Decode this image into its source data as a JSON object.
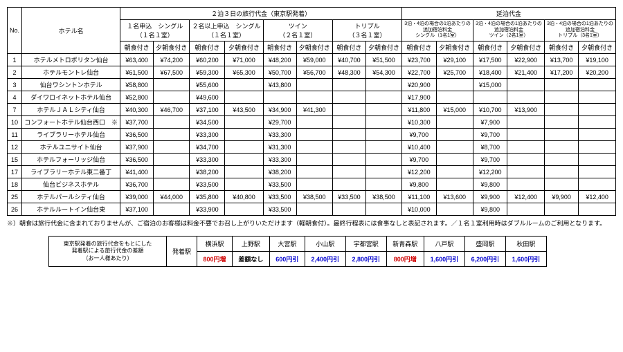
{
  "main": {
    "headers": {
      "no": "No.",
      "hotel": "ホテル名",
      "trip_title": "２泊３日の旅行代金（東京駅発着）",
      "ext_title": "延泊代金",
      "groups": [
        {
          "top": "１名申込　シングル",
          "bottom": "（１名１室）"
        },
        {
          "top": "２名以上申込　シングル",
          "bottom": "（１名１室）"
        },
        {
          "top": "ツイン",
          "bottom": "（２名１室）"
        },
        {
          "top": "トリプル",
          "bottom": "（３名１室）"
        }
      ],
      "ext_groups": [
        {
          "l1": "3泊・4泊の場合の1泊あたりの",
          "l2": "追加宿泊料金",
          "l3": "シングル（1名1室）"
        },
        {
          "l1": "3泊・4泊の場合の1泊あたりの",
          "l2": "追加宿泊料金",
          "l3": "ツイン（2名1室）"
        },
        {
          "l1": "3泊・4泊の場合の1泊あたりの",
          "l2": "追加宿泊料金",
          "l3": "トリプル（3名1室）"
        }
      ],
      "sub_bf": "朝食付き",
      "sub_db": "夕朝食付き"
    },
    "rows": [
      {
        "no": "1",
        "hotel": "ホテルメトロポリタン仙台",
        "v": [
          "¥63,400",
          "¥74,200",
          "¥60,200",
          "¥71,000",
          "¥48,200",
          "¥59,000",
          "¥40,700",
          "¥51,500",
          "¥23,700",
          "¥29,100",
          "¥17,500",
          "¥22,900",
          "¥13,700",
          "¥19,100"
        ]
      },
      {
        "no": "2",
        "hotel": "ホテルモントレ仙台",
        "v": [
          "¥61,500",
          "¥67,500",
          "¥59,300",
          "¥65,300",
          "¥50,700",
          "¥56,700",
          "¥48,300",
          "¥54,300",
          "¥22,700",
          "¥25,700",
          "¥18,400",
          "¥21,400",
          "¥17,200",
          "¥20,200"
        ]
      },
      {
        "no": "3",
        "hotel": "仙台ワシントンホテル",
        "v": [
          "¥58,800",
          "",
          "¥55,600",
          "",
          "¥43,800",
          "",
          "",
          "",
          "¥20,900",
          "",
          "¥15,000",
          "",
          "",
          ""
        ]
      },
      {
        "no": "4",
        "hotel": "ダイワロイネットホテル仙台",
        "v": [
          "¥52,800",
          "",
          "¥49,600",
          "",
          "",
          "",
          "",
          "",
          "¥17,900",
          "",
          "",
          "",
          "",
          ""
        ]
      },
      {
        "no": "7",
        "hotel": "ホテルＪＡＬシティ仙台",
        "v": [
          "¥40,300",
          "¥46,700",
          "¥37,100",
          "¥43,500",
          "¥34,900",
          "¥41,300",
          "",
          "",
          "¥11,800",
          "¥15,000",
          "¥10,700",
          "¥13,900",
          "",
          ""
        ]
      },
      {
        "no": "10",
        "hotel": "コンフォートホテル仙台西口　※",
        "v": [
          "¥37,700",
          "",
          "¥34,500",
          "",
          "¥29,700",
          "",
          "",
          "",
          "¥10,300",
          "",
          "¥7,900",
          "",
          "",
          ""
        ]
      },
      {
        "no": "11",
        "hotel": "ライブラリーホテル仙台",
        "v": [
          "¥36,500",
          "",
          "¥33,300",
          "",
          "¥33,300",
          "",
          "",
          "",
          "¥9,700",
          "",
          "¥9,700",
          "",
          "",
          ""
        ]
      },
      {
        "no": "12",
        "hotel": "ホテルユニサイト仙台",
        "v": [
          "¥37,900",
          "",
          "¥34,700",
          "",
          "¥31,300",
          "",
          "",
          "",
          "¥10,400",
          "",
          "¥8,700",
          "",
          "",
          ""
        ]
      },
      {
        "no": "15",
        "hotel": "ホテルフォーリッジ仙台",
        "v": [
          "¥36,500",
          "",
          "¥33,300",
          "",
          "¥33,300",
          "",
          "",
          "",
          "¥9,700",
          "",
          "¥9,700",
          "",
          "",
          ""
        ]
      },
      {
        "no": "17",
        "hotel": "ライブラリーホテル東二番丁",
        "v": [
          "¥41,400",
          "",
          "¥38,200",
          "",
          "¥38,200",
          "",
          "",
          "",
          "¥12,200",
          "",
          "¥12,200",
          "",
          "",
          ""
        ]
      },
      {
        "no": "18",
        "hotel": "仙台ビジネスホテル",
        "v": [
          "¥36,700",
          "",
          "¥33,500",
          "",
          "¥33,500",
          "",
          "",
          "",
          "¥9,800",
          "",
          "¥9,800",
          "",
          "",
          ""
        ]
      },
      {
        "no": "25",
        "hotel": "ホテルパールシティ仙台",
        "v": [
          "¥39,000",
          "¥44,000",
          "¥35,800",
          "¥40,800",
          "¥33,500",
          "¥38,500",
          "¥33,500",
          "¥38,500",
          "¥11,100",
          "¥13,600",
          "¥9,900",
          "¥12,400",
          "¥9,900",
          "¥12,400"
        ]
      },
      {
        "no": "26",
        "hotel": "ホテルルートイン仙台東",
        "v": [
          "¥37,100",
          "",
          "¥33,900",
          "",
          "¥33,500",
          "",
          "",
          "",
          "¥10,000",
          "",
          "¥9,800",
          "",
          "",
          ""
        ]
      }
    ],
    "note": "※）朝食は旅行代金に含まれておりませんが、ご宿泊のお客様は料金不要でお召し上がりいただけます（軽朝食付）。最終行程表には食事なしと表記されます。／１名１室利用時はダブルルームのご利用となります。"
  },
  "sub": {
    "label": {
      "l1": "東京駅発着の旅行代金をもとにした",
      "l2": "発着駅による旅行代金の差額",
      "l3": "（お一人様あたり）"
    },
    "rowlabel": "発着駅",
    "stations": [
      "横浜駅",
      "上野駅",
      "大宮駅",
      "小山駅",
      "宇都宮駅",
      "新青森駅",
      "八戸駅",
      "盛岡駅",
      "秋田駅"
    ],
    "values": [
      {
        "t": "800円増",
        "c": "red"
      },
      {
        "t": "差額なし",
        "c": ""
      },
      {
        "t": "600円引",
        "c": "blue"
      },
      {
        "t": "2,400円引",
        "c": "blue"
      },
      {
        "t": "2,800円引",
        "c": "blue"
      },
      {
        "t": "800円増",
        "c": "red"
      },
      {
        "t": "1,600円引",
        "c": "blue"
      },
      {
        "t": "6,200円引",
        "c": "blue"
      },
      {
        "t": "1,600円引",
        "c": "blue"
      }
    ]
  }
}
